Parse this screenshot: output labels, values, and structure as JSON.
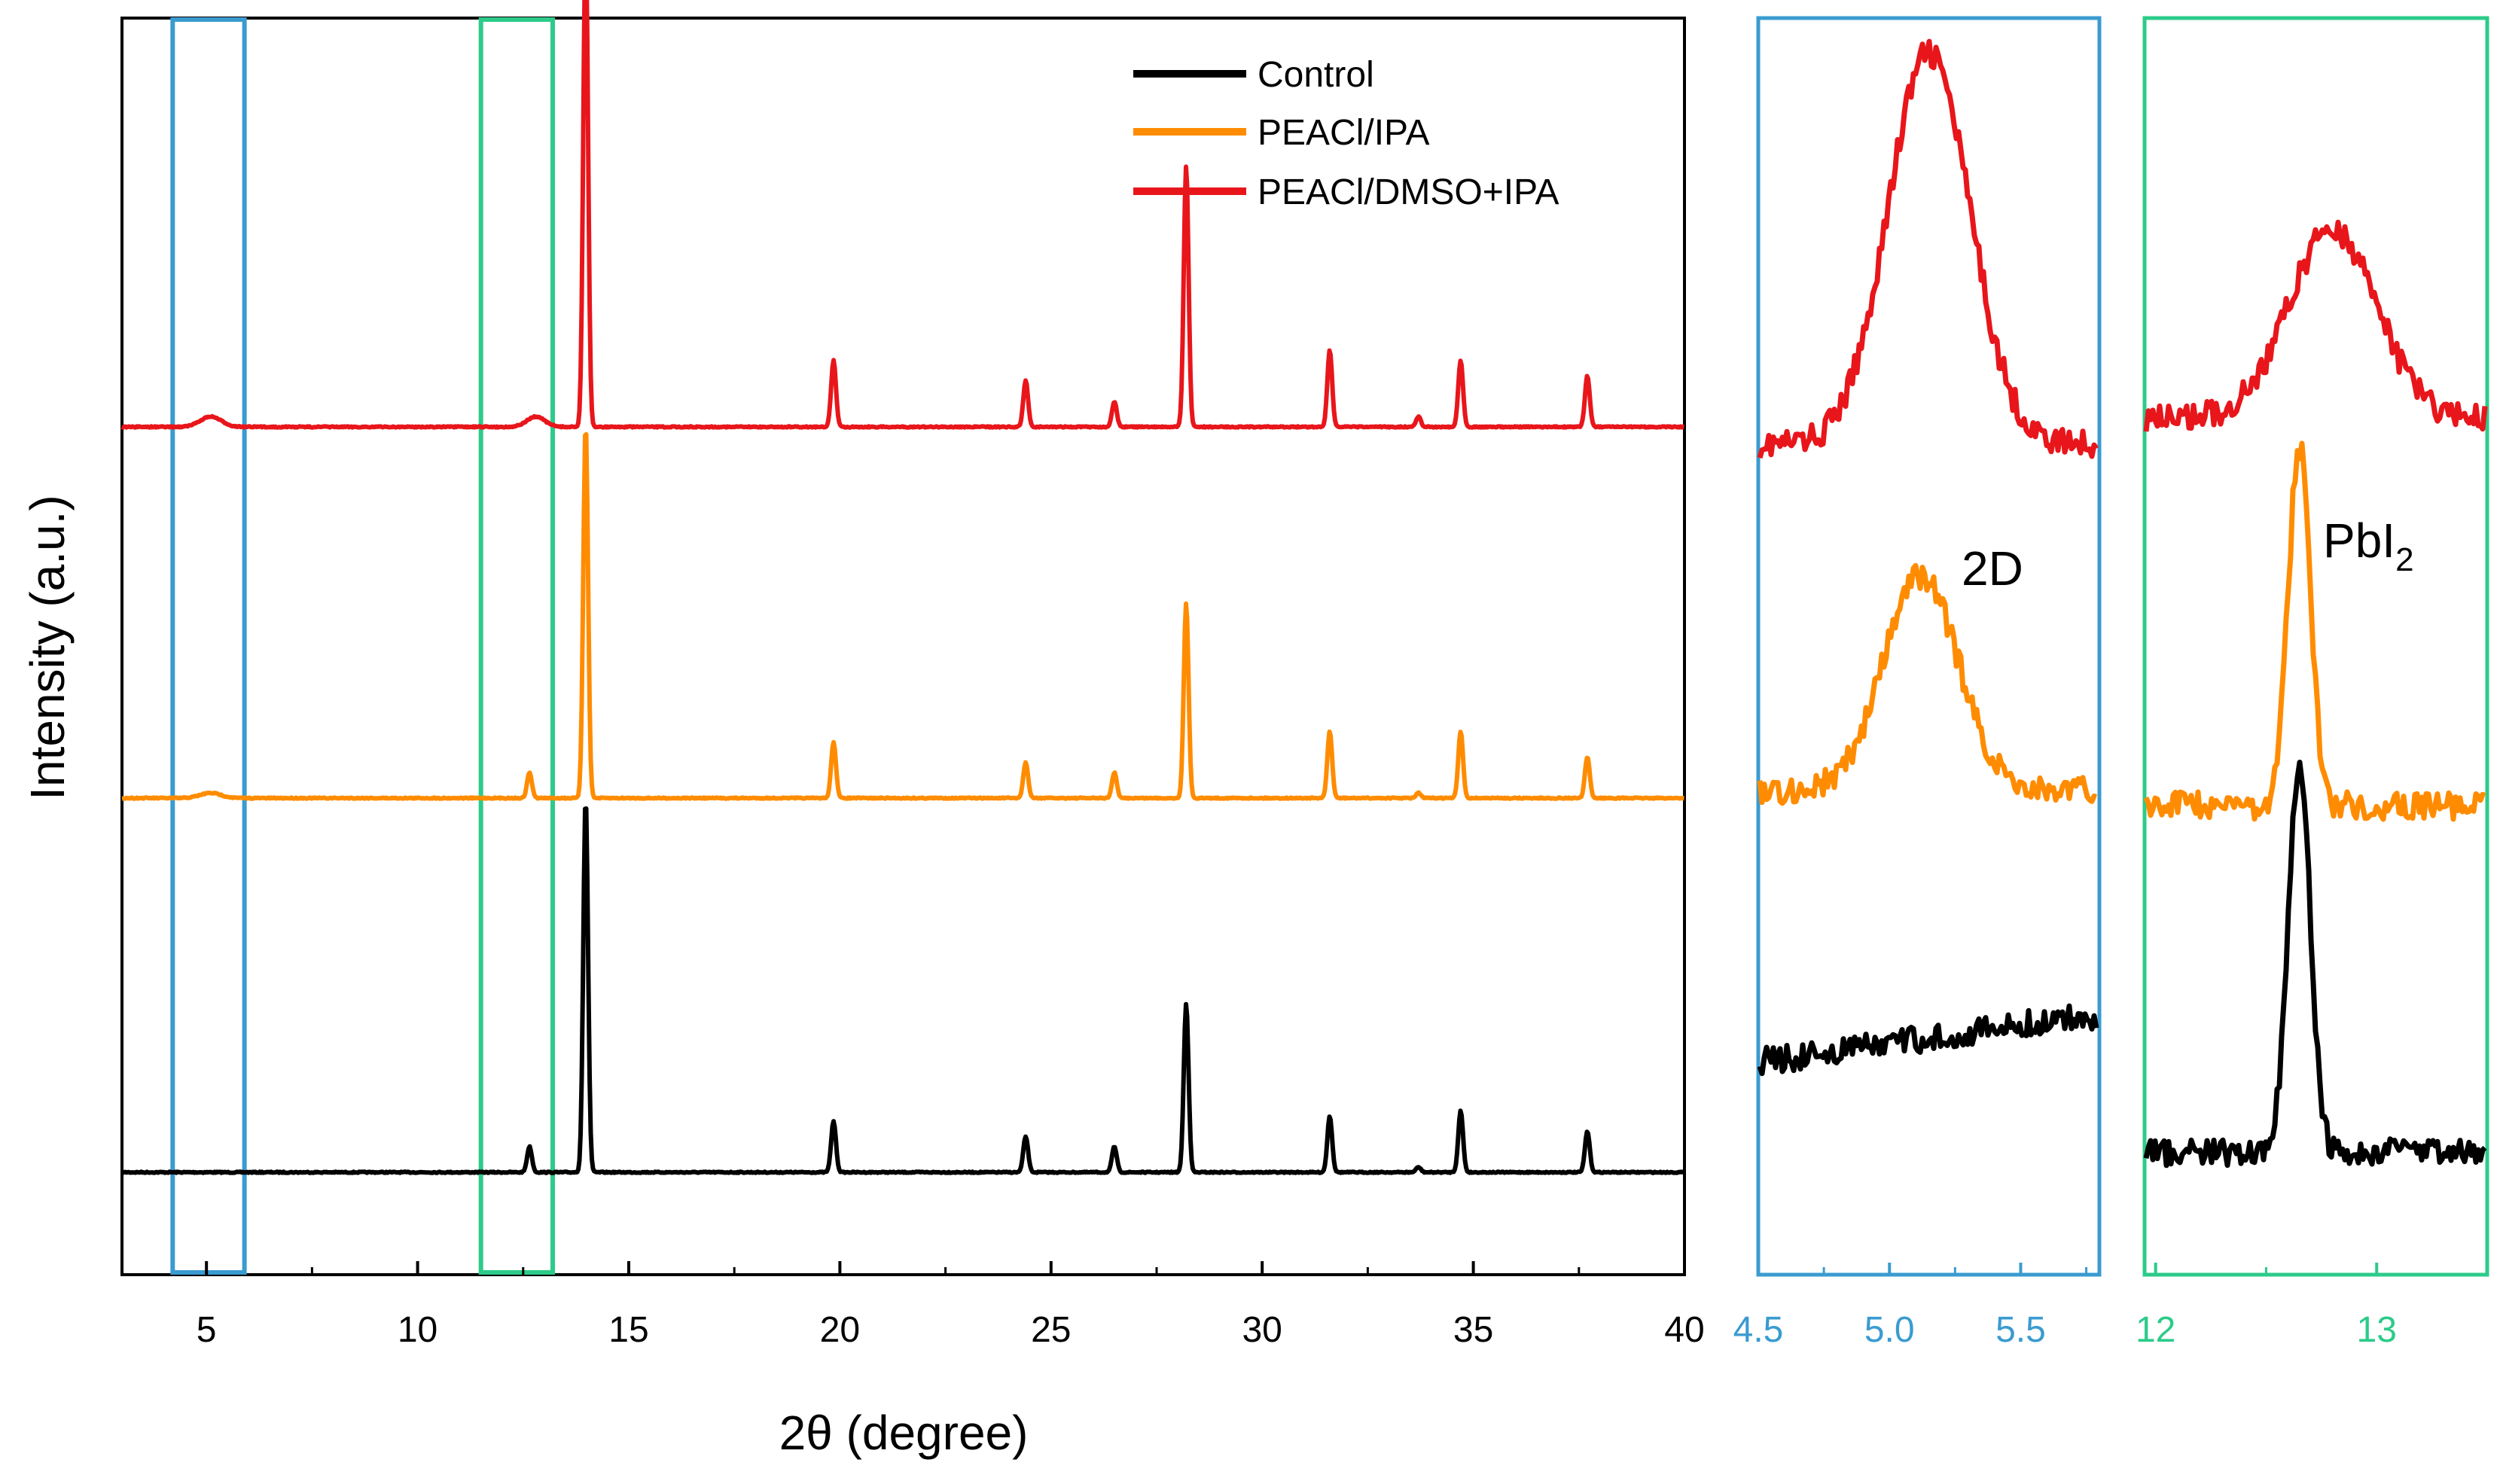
{
  "chart_data": [
    {
      "type": "line",
      "panel": "main",
      "xlabel": "2θ (degree)",
      "ylabel": "Intensity (a.u.)",
      "xlim": [
        3,
        40
      ],
      "xticks": [
        "5",
        "10",
        "15",
        "20",
        "25",
        "30",
        "35",
        "40"
      ],
      "legend": {
        "placement": "top-right",
        "entries": [
          {
            "label": "Control",
            "color": "#000000"
          },
          {
            "label": "PEACl/IPA",
            "color": "#ff8c00"
          },
          {
            "label": "PEACl/DMSO+IPA",
            "color": "#e8161b"
          }
        ]
      },
      "highlight_ranges": [
        {
          "x": [
            4.2,
            5.9
          ],
          "color": "#3a9bd0"
        },
        {
          "x": [
            11.5,
            13.2
          ],
          "color": "#2ccb8a"
        }
      ],
      "series": [
        {
          "name": "Control",
          "color": "#000000",
          "baseline": 0,
          "peaks": [
            {
              "x": 12.65,
              "h": 0.05
            },
            {
              "x": 13.98,
              "h": 0.73
            },
            {
              "x": 19.85,
              "h": 0.1
            },
            {
              "x": 24.4,
              "h": 0.07
            },
            {
              "x": 26.5,
              "h": 0.05
            },
            {
              "x": 28.2,
              "h": 0.33
            },
            {
              "x": 31.6,
              "h": 0.11
            },
            {
              "x": 33.7,
              "h": 0.01
            },
            {
              "x": 34.7,
              "h": 0.12
            },
            {
              "x": 37.7,
              "h": 0.08
            }
          ]
        },
        {
          "name": "PEACl/IPA",
          "color": "#ff8c00",
          "baseline": 1,
          "peaks": [
            {
              "x": 5.1,
              "h": 0.01
            },
            {
              "x": 12.65,
              "h": 0.05
            },
            {
              "x": 13.98,
              "h": 0.73
            },
            {
              "x": 19.85,
              "h": 0.11
            },
            {
              "x": 24.4,
              "h": 0.07
            },
            {
              "x": 26.5,
              "h": 0.05
            },
            {
              "x": 28.2,
              "h": 0.38
            },
            {
              "x": 31.6,
              "h": 0.13
            },
            {
              "x": 33.7,
              "h": 0.01
            },
            {
              "x": 34.7,
              "h": 0.13
            },
            {
              "x": 37.7,
              "h": 0.08
            }
          ]
        },
        {
          "name": "PEACl/DMSO+IPA",
          "color": "#e8161b",
          "baseline": 2,
          "peaks": [
            {
              "x": 5.1,
              "h": 0.02
            },
            {
              "x": 12.8,
              "h": 0.02
            },
            {
              "x": 13.98,
              "h": 0.96
            },
            {
              "x": 19.85,
              "h": 0.13
            },
            {
              "x": 24.4,
              "h": 0.09
            },
            {
              "x": 26.5,
              "h": 0.05
            },
            {
              "x": 28.2,
              "h": 0.51
            },
            {
              "x": 31.6,
              "h": 0.15
            },
            {
              "x": 33.7,
              "h": 0.02
            },
            {
              "x": 34.7,
              "h": 0.13
            },
            {
              "x": 37.7,
              "h": 0.1
            }
          ]
        }
      ]
    },
    {
      "type": "line",
      "panel": "inset-2D",
      "xlim": [
        4.5,
        5.8
      ],
      "xticks": [
        "4.5",
        "5.0",
        "5.5"
      ],
      "annotation": "2D",
      "frame_color": "#3a9bd0",
      "series": [
        {
          "name": "PEACl/DMSO+IPA",
          "color": "#e8161b",
          "shape": "peak",
          "center": 5.15,
          "width": 0.22,
          "rise": 1.0
        },
        {
          "name": "PEACl/IPA",
          "color": "#ff8c00",
          "shape": "peak",
          "center": 5.12,
          "width": 0.2,
          "rise": 0.55
        },
        {
          "name": "Control",
          "color": "#000000",
          "shape": "flat",
          "slope": 0.12
        }
      ]
    },
    {
      "type": "line",
      "panel": "inset-PbI2",
      "xlim": [
        11.95,
        13.5
      ],
      "xticks": [
        "12",
        "13"
      ],
      "annotation_main": "PbI",
      "annotation_sub": "2",
      "frame_color": "#2ccb8a",
      "series": [
        {
          "name": "PEACl/DMSO+IPA",
          "color": "#e8161b",
          "shape": "peak",
          "center": 12.8,
          "width": 0.28,
          "rise": 0.48
        },
        {
          "name": "PEACl/IPA",
          "color": "#ff8c00",
          "shape": "peak",
          "center": 12.65,
          "width": 0.07,
          "rise": 0.92
        },
        {
          "name": "Control",
          "color": "#000000",
          "shape": "peak",
          "center": 12.65,
          "width": 0.07,
          "rise": 1.0
        }
      ]
    }
  ]
}
